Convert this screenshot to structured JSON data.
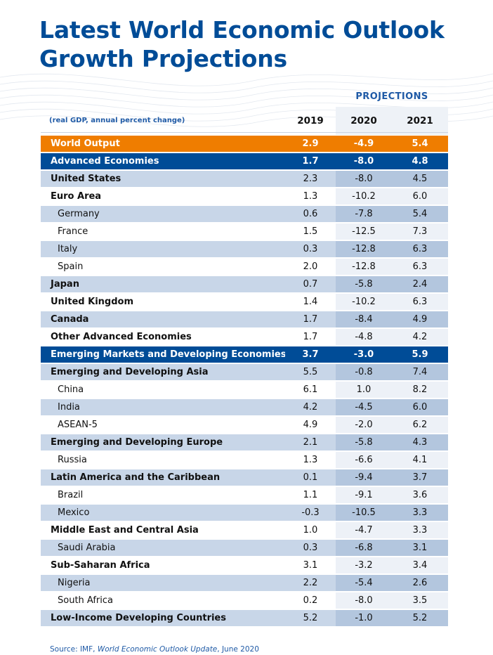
{
  "title": {
    "line1": "Latest World Economic Outlook",
    "line2": "Growth Projections"
  },
  "projections_label": "PROJECTIONS",
  "subtitle": "(real GDP, annual percent change)",
  "years": [
    "2019",
    "2020",
    "2021"
  ],
  "rows": [
    {
      "label": "World Output",
      "v2019": "2.9",
      "v2020": "-4.9",
      "v2021": "5.4",
      "style": "orange"
    },
    {
      "label": "Advanced Economies",
      "v2019": "1.7",
      "v2020": "-8.0",
      "v2021": "4.8",
      "style": "blue"
    },
    {
      "label": "United States",
      "v2019": "2.3",
      "v2020": "-8.0",
      "v2021": "4.5",
      "style": "bold alt"
    },
    {
      "label": "Euro Area",
      "v2019": "1.3",
      "v2020": "-10.2",
      "v2021": "6.0",
      "style": "bold"
    },
    {
      "label": "Germany",
      "v2019": "0.6",
      "v2020": "-7.8",
      "v2021": "5.4",
      "style": "indent alt"
    },
    {
      "label": "France",
      "v2019": "1.5",
      "v2020": "-12.5",
      "v2021": "7.3",
      "style": "indent"
    },
    {
      "label": "Italy",
      "v2019": "0.3",
      "v2020": "-12.8",
      "v2021": "6.3",
      "style": "indent alt"
    },
    {
      "label": "Spain",
      "v2019": "2.0",
      "v2020": "-12.8",
      "v2021": "6.3",
      "style": "indent"
    },
    {
      "label": "Japan",
      "v2019": "0.7",
      "v2020": "-5.8",
      "v2021": "2.4",
      "style": "bold alt"
    },
    {
      "label": "United Kingdom",
      "v2019": "1.4",
      "v2020": "-10.2",
      "v2021": "6.3",
      "style": "bold"
    },
    {
      "label": "Canada",
      "v2019": "1.7",
      "v2020": "-8.4",
      "v2021": "4.9",
      "style": "bold alt"
    },
    {
      "label": "Other Advanced Economies",
      "v2019": "1.7",
      "v2020": "-4.8",
      "v2021": "4.2",
      "style": "bold"
    },
    {
      "label": "Emerging Markets and Developing Economies",
      "v2019": "3.7",
      "v2020": "-3.0",
      "v2021": "5.9",
      "style": "blue"
    },
    {
      "label": "Emerging and Developing Asia",
      "v2019": "5.5",
      "v2020": "-0.8",
      "v2021": "7.4",
      "style": "bold alt"
    },
    {
      "label": "China",
      "v2019": "6.1",
      "v2020": "1.0",
      "v2021": "8.2",
      "style": "indent"
    },
    {
      "label": "India",
      "v2019": "4.2",
      "v2020": "-4.5",
      "v2021": "6.0",
      "style": "indent alt"
    },
    {
      "label": "ASEAN-5",
      "v2019": "4.9",
      "v2020": "-2.0",
      "v2021": "6.2",
      "style": "indent"
    },
    {
      "label": "Emerging and Developing Europe",
      "v2019": "2.1",
      "v2020": "-5.8",
      "v2021": "4.3",
      "style": "bold alt"
    },
    {
      "label": "Russia",
      "v2019": "1.3",
      "v2020": "-6.6",
      "v2021": "4.1",
      "style": "indent"
    },
    {
      "label": "Latin America and the Caribbean",
      "v2019": "0.1",
      "v2020": "-9.4",
      "v2021": "3.7",
      "style": "bold alt"
    },
    {
      "label": "Brazil",
      "v2019": "1.1",
      "v2020": "-9.1",
      "v2021": "3.6",
      "style": "indent"
    },
    {
      "label": "Mexico",
      "v2019": "-0.3",
      "v2020": "-10.5",
      "v2021": "3.3",
      "style": "indent alt"
    },
    {
      "label": "Middle East and Central Asia",
      "v2019": "1.0",
      "v2020": "-4.7",
      "v2021": "3.3",
      "style": "bold"
    },
    {
      "label": "Saudi Arabia",
      "v2019": "0.3",
      "v2020": "-6.8",
      "v2021": "3.1",
      "style": "indent alt"
    },
    {
      "label": "Sub-Saharan Africa",
      "v2019": "3.1",
      "v2020": "-3.2",
      "v2021": "3.4",
      "style": "bold"
    },
    {
      "label": "Nigeria",
      "v2019": "2.2",
      "v2020": "-5.4",
      "v2021": "2.6",
      "style": "indent alt"
    },
    {
      "label": "South Africa",
      "v2019": "0.2",
      "v2020": "-8.0",
      "v2021": "3.5",
      "style": "indent"
    },
    {
      "label": "Low-Income Developing Countries",
      "v2019": "5.2",
      "v2020": "-1.0",
      "v2021": "5.2",
      "style": "bold alt"
    }
  ],
  "source": {
    "prefix": "Source: IMF, ",
    "publication": "World Economic Outlook Update",
    "suffix": ", June 2020"
  },
  "colors": {
    "brand_blue": "#004c97",
    "orange": "#ef7d00",
    "row_alt": "#c8d6e8",
    "text_blue": "#1f5aa6"
  }
}
